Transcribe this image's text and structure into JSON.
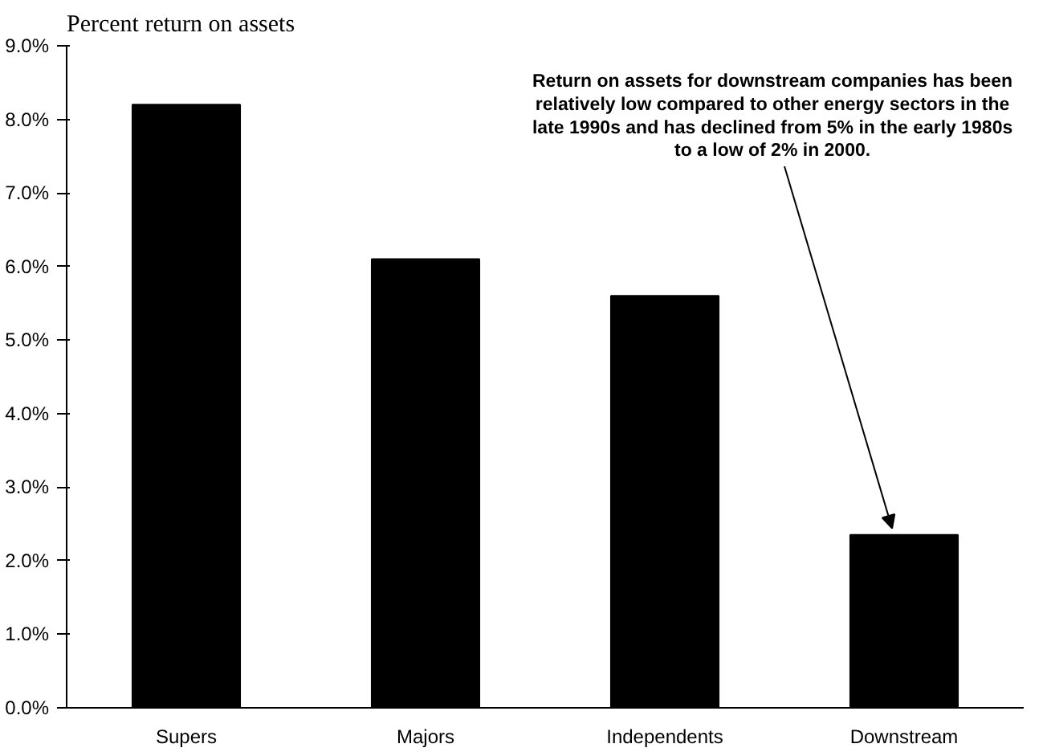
{
  "chart_data": {
    "type": "bar",
    "title": "Percent return on assets",
    "categories": [
      "Supers",
      "Majors",
      "Independents",
      "Downstream"
    ],
    "values": [
      8.2,
      6.1,
      5.6,
      2.35
    ],
    "color": "#000000",
    "ylim": [
      0,
      9
    ],
    "yticks": [
      {
        "value": 0,
        "label": "0.0%"
      },
      {
        "value": 1,
        "label": "1.0%"
      },
      {
        "value": 2,
        "label": "2.0%"
      },
      {
        "value": 3,
        "label": "3.0%"
      },
      {
        "value": 4,
        "label": "4.0%"
      },
      {
        "value": 5,
        "label": "5.0%"
      },
      {
        "value": 6,
        "label": "6.0%"
      },
      {
        "value": 7,
        "label": "7.0%"
      },
      {
        "value": 8,
        "label": "8.0%"
      },
      {
        "value": 9,
        "label": "9.0%"
      }
    ],
    "grid": false,
    "annotations": [
      {
        "text": "Return on assets for downstream companies has been\nrelatively low compared to other energy sectors in the\nlate 1990s and has declined from 5% in the early 1980s\nto a low of 2% in 2000.",
        "x": "Downstream",
        "y": 2.35
      }
    ]
  }
}
